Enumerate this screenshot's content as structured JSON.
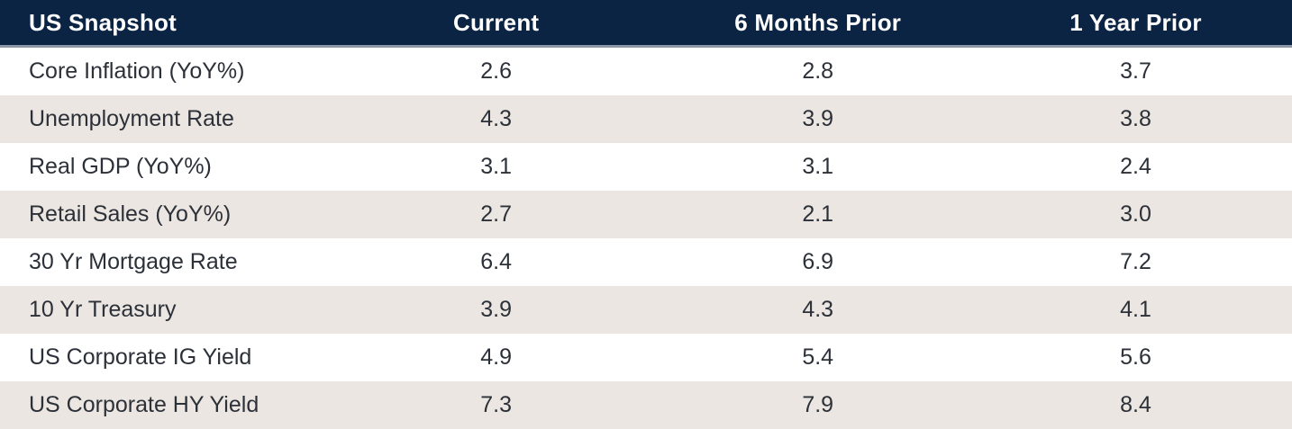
{
  "table": {
    "columns": [
      "US Snapshot",
      "Current",
      "6 Months Prior",
      "1 Year Prior"
    ],
    "rows": [
      {
        "label": "Core Inflation (YoY%)",
        "values": [
          "2.6",
          "2.8",
          "3.7"
        ]
      },
      {
        "label": "Unemployment Rate",
        "values": [
          "4.3",
          "3.9",
          "3.8"
        ]
      },
      {
        "label": "Real GDP (YoY%)",
        "values": [
          "3.1",
          "3.1",
          "2.4"
        ]
      },
      {
        "label": "Retail Sales (YoY%)",
        "values": [
          "2.7",
          "2.1",
          "3.0"
        ]
      },
      {
        "label": "30 Yr Mortgage Rate",
        "values": [
          "6.4",
          "6.9",
          "7.2"
        ]
      },
      {
        "label": "10 Yr Treasury",
        "values": [
          "3.9",
          "4.3",
          "4.1"
        ]
      },
      {
        "label": "US Corporate IG Yield",
        "values": [
          "4.9",
          "5.4",
          "5.6"
        ]
      },
      {
        "label": "US Corporate HY Yield",
        "values": [
          "7.3",
          "7.9",
          "8.4"
        ]
      }
    ]
  },
  "chart_data": {
    "type": "table",
    "title": "US Snapshot",
    "columns": [
      "US Snapshot",
      "Current",
      "6 Months Prior",
      "1 Year Prior"
    ],
    "rows": [
      {
        "label": "Core Inflation (YoY%)",
        "current": 2.6,
        "six_months_prior": 2.8,
        "one_year_prior": 3.7
      },
      {
        "label": "Unemployment Rate",
        "current": 4.3,
        "six_months_prior": 3.9,
        "one_year_prior": 3.8
      },
      {
        "label": "Real GDP (YoY%)",
        "current": 3.1,
        "six_months_prior": 3.1,
        "one_year_prior": 2.4
      },
      {
        "label": "Retail Sales (YoY%)",
        "current": 2.7,
        "six_months_prior": 2.1,
        "one_year_prior": 3.0
      },
      {
        "label": "30 Yr Mortgage Rate",
        "current": 6.4,
        "six_months_prior": 6.9,
        "one_year_prior": 7.2
      },
      {
        "label": "10 Yr Treasury",
        "current": 3.9,
        "six_months_prior": 4.3,
        "one_year_prior": 4.1
      },
      {
        "label": "US Corporate IG Yield",
        "current": 4.9,
        "six_months_prior": 5.4,
        "one_year_prior": 5.6
      },
      {
        "label": "US Corporate HY Yield",
        "current": 7.3,
        "six_months_prior": 7.9,
        "one_year_prior": 8.4
      }
    ],
    "layout": {
      "striped_rows": true,
      "value_alignment": "center",
      "label_alignment": "left"
    }
  },
  "colors": {
    "header_bg": "#0B2444",
    "header_text": "#FFFFFF",
    "header_border": "#8E96A3",
    "row_bg": "#FFFFFF",
    "row_alt_bg": "#EBE6E1",
    "body_text": "#2C3038"
  }
}
